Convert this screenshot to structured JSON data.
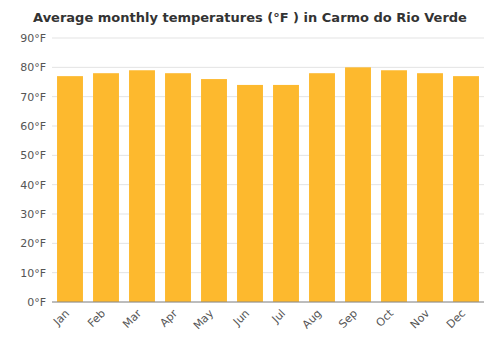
{
  "chart_data": {
    "type": "bar",
    "title": "Average monthly temperatures (°F ) in Carmo do Rio Verde",
    "categories": [
      "Jan",
      "Feb",
      "Mar",
      "Apr",
      "May",
      "Jun",
      "Jul",
      "Aug",
      "Sep",
      "Oct",
      "Nov",
      "Dec"
    ],
    "values": [
      77,
      78,
      79,
      78,
      76,
      74,
      74,
      78,
      80,
      79,
      78,
      77
    ],
    "color": "#FDB92E",
    "ylim": [
      0,
      90
    ],
    "yticks": [
      {
        "value": 0,
        "label": "0°F"
      },
      {
        "value": 10,
        "label": "10°F"
      },
      {
        "value": 20,
        "label": "20°F"
      },
      {
        "value": 30,
        "label": "30°F"
      },
      {
        "value": 40,
        "label": "40°F"
      },
      {
        "value": 50,
        "label": "50°F"
      },
      {
        "value": 60,
        "label": "60°F"
      },
      {
        "value": 70,
        "label": "70°F"
      },
      {
        "value": 80,
        "label": "80°F"
      },
      {
        "value": 90,
        "label": "90°F"
      }
    ],
    "grid": true
  }
}
